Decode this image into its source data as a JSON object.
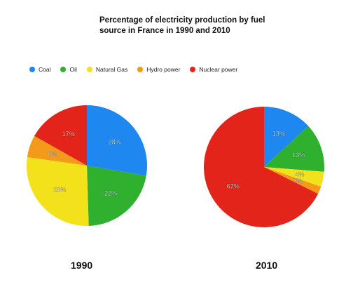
{
  "title": "Percentage of electricity production by fuel\nsource in France in 1990 and 2010",
  "legend": [
    {
      "name": "Coal",
      "color": "#1e88f0"
    },
    {
      "name": "Oil",
      "color": "#2fb02f"
    },
    {
      "name": "Natural Gas",
      "color": "#f3e21b"
    },
    {
      "name": "Hydro power",
      "color": "#f39a1a"
    },
    {
      "name": "Nuclear power",
      "color": "#e3241a"
    }
  ],
  "chart_data": [
    {
      "type": "pie",
      "label": "1990",
      "categories": [
        "Coal",
        "Oil",
        "Natural Gas",
        "Hydro power",
        "Nuclear power"
      ],
      "values": [
        28,
        22,
        28,
        6,
        17
      ],
      "data_labels": [
        "28%",
        "22%",
        "28%",
        "6%",
        "17%"
      ],
      "start_angle_deg": 0,
      "direction": "clockwise"
    },
    {
      "type": "pie",
      "label": "2010",
      "categories": [
        "Coal",
        "Oil",
        "Natural Gas",
        "Hydro power",
        "Nuclear power"
      ],
      "values": [
        13,
        13,
        4,
        2,
        67
      ],
      "data_labels": [
        "13%",
        "13%",
        "4%",
        "2%",
        "67%"
      ],
      "start_angle_deg": 0,
      "direction": "clockwise"
    }
  ]
}
